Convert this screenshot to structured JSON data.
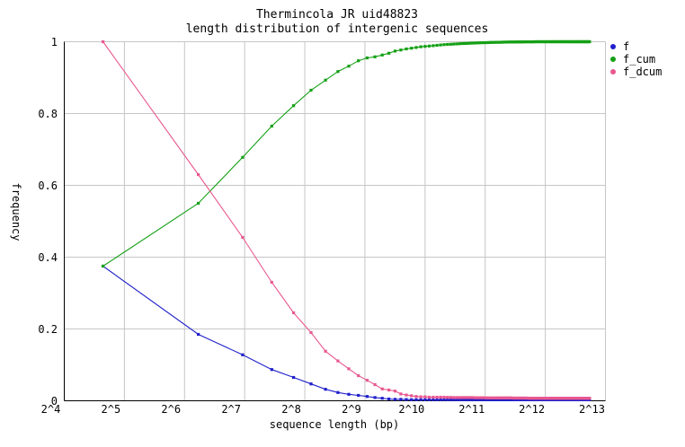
{
  "title": {
    "line1": "Thermincola JR uid48823",
    "line2": "length distribution of intergenic sequences"
  },
  "axes": {
    "x_label": "sequence length (bp)",
    "y_label": "frequency",
    "x_ticks": [
      {
        "label": "2^4",
        "log2": 4
      },
      {
        "label": "2^5",
        "log2": 5
      },
      {
        "label": "2^6",
        "log2": 6
      },
      {
        "label": "2^7",
        "log2": 7
      },
      {
        "label": "2^8",
        "log2": 8
      },
      {
        "label": "2^9",
        "log2": 9
      },
      {
        "label": "2^10",
        "log2": 10
      },
      {
        "label": "2^11",
        "log2": 11
      },
      {
        "label": "2^12",
        "log2": 12
      },
      {
        "label": "2^13",
        "log2": 13
      }
    ],
    "y_ticks": [
      {
        "label": "0",
        "value": 0
      },
      {
        "label": "0.2",
        "value": 0.2
      },
      {
        "label": "0.4",
        "value": 0.4
      },
      {
        "label": "0.6",
        "value": 0.6
      },
      {
        "label": "0.8",
        "value": 0.8
      },
      {
        "label": "1",
        "value": 1
      }
    ],
    "grid_color": "#c6c6c6",
    "axis_color": "#000000"
  },
  "chart_data": {
    "type": "line",
    "title": "Thermincola JR uid48823 — length distribution of intergenic sequences",
    "xlabel": "sequence length (bp)",
    "ylabel": "frequency",
    "x_scale": "log2",
    "xlim_log2": [
      4,
      13
    ],
    "ylim": [
      0,
      1
    ],
    "grid": true,
    "legend_position": "top-right-outside",
    "x_bp": [
      25,
      75,
      125,
      175,
      225,
      275,
      325,
      375,
      425,
      475,
      525,
      575,
      625,
      675,
      725,
      775,
      825,
      875,
      925,
      975,
      1025,
      1075,
      1125,
      1175,
      1225,
      1275,
      1325,
      1375,
      1425,
      1475,
      1525,
      1575,
      1625,
      1675,
      1725,
      1775,
      1825,
      1875,
      1925,
      1975,
      2025,
      2075,
      2125,
      2175,
      2225,
      2275,
      2325,
      2375,
      2425,
      2475,
      2525,
      2575,
      2625,
      2675,
      2725,
      2775,
      2825,
      2875,
      2925,
      2975,
      3025,
      3075,
      3125,
      3175,
      3225,
      3275,
      3325,
      3375,
      3425,
      3475,
      3525,
      3575,
      3625,
      3675,
      3725,
      3775,
      3825,
      3875,
      3925,
      3975,
      4025,
      4075,
      4125,
      4175,
      4225,
      4275,
      4325,
      4375,
      4425,
      4475,
      4525,
      4575,
      4625,
      4675,
      4725,
      4775,
      4825,
      4875,
      4925,
      4975,
      5025,
      5075,
      5125,
      5175,
      5225,
      5275,
      5325,
      5375,
      5425,
      5475,
      5525,
      5575,
      5625,
      5675,
      5725,
      5775,
      5825,
      5875,
      5925,
      5975,
      6025,
      6075,
      6125,
      6175,
      6225,
      6275,
      6325,
      6375,
      6425,
      6475,
      6525,
      6575,
      6625,
      6675,
      6725,
      6775,
      6825
    ],
    "series": [
      {
        "name": "f",
        "color": "#2020cc",
        "values": [
          0.375,
          0.185,
          0.128,
          0.087,
          0.065,
          0.047,
          0.032,
          0.023,
          0.018,
          0.015,
          0.012,
          0.009,
          0.007,
          0.005,
          0.004,
          0.004,
          0.0035,
          0.003,
          0.003,
          0.003,
          0.003,
          0.003,
          0.003,
          0.003,
          0.003,
          0.003,
          0.003,
          0.003,
          0.003,
          0.003,
          0.003,
          0.003,
          0.003,
          0.003,
          0.003,
          0.003,
          0.003,
          0.003,
          0.003,
          0.003,
          0.003,
          0.003,
          0.003,
          0.003,
          0.003,
          0.003,
          0.003,
          0.003,
          0.003,
          0.003,
          0.003,
          0.003,
          0.003,
          0.003,
          0.003,
          0.003,
          0.003,
          0.003,
          0.003,
          0.003,
          0.003,
          0.003,
          0.003,
          0.003,
          0.003,
          0.003,
          0.003,
          0.003,
          0.003,
          0.003,
          0.003,
          0.003,
          0.003,
          0.003,
          0.003,
          0.003,
          0.003,
          0.003,
          0.003,
          0.003,
          0.003,
          0.003,
          0.003,
          0.003,
          0.003,
          0.003,
          0.003,
          0.003,
          0.003,
          0.003,
          0.003,
          0.003,
          0.003,
          0.003,
          0.003,
          0.003,
          0.003,
          0.003,
          0.003,
          0.003,
          0.003,
          0.003,
          0.003,
          0.003,
          0.003,
          0.003,
          0.003,
          0.003,
          0.003,
          0.003,
          0.003,
          0.003,
          0.003,
          0.003,
          0.003,
          0.003,
          0.003,
          0.003,
          0.003,
          0.003,
          0.003,
          0.003,
          0.003,
          0.003,
          0.003,
          0.003,
          0.003,
          0.003,
          0.003,
          0.003,
          0.003,
          0.003,
          0.003,
          0.003,
          0.003,
          0.003,
          0.003
        ]
      },
      {
        "name": "f_cum",
        "color": "#14a014",
        "values": [
          0.375,
          0.55,
          0.678,
          0.765,
          0.822,
          0.865,
          0.893,
          0.917,
          0.932,
          0.947,
          0.955,
          0.958,
          0.963,
          0.968,
          0.974,
          0.977,
          0.98,
          0.982,
          0.984,
          0.986,
          0.987,
          0.988,
          0.989,
          0.99,
          0.991,
          0.992,
          0.9925,
          0.993,
          0.9935,
          0.994,
          0.9945,
          0.995,
          0.9953,
          0.9956,
          0.9959,
          0.9962,
          0.9965,
          0.9968,
          0.997,
          0.9972,
          0.9974,
          0.9976,
          0.9978,
          0.998,
          0.9982,
          0.9983,
          0.9984,
          0.9985,
          0.9986,
          0.9987,
          0.9988,
          0.999,
          0.9991,
          0.9991,
          0.9992,
          0.9992,
          0.9993,
          0.9993,
          0.9994,
          0.9994,
          0.9995,
          0.9995,
          0.9996,
          0.9996,
          0.9997,
          0.9997,
          0.9998,
          0.9998,
          0.9998,
          0.9998,
          0.9998,
          0.9998,
          0.9999,
          0.9999,
          0.9999,
          0.9999,
          0.9999,
          0.9999,
          0.9999,
          0.9999,
          1.0,
          1.0,
          1.0,
          1.0,
          1.0,
          1.0,
          1.0,
          1.0,
          1.0,
          1.0,
          1.0,
          1.0,
          1.0,
          1.0,
          1.0,
          1.0,
          1.0,
          1.0,
          1.0,
          1.0,
          1.0,
          1.0,
          1.0,
          1.0,
          1.0,
          1.0,
          1.0,
          1.0,
          1.0,
          1.0,
          1.0,
          1.0,
          1.0,
          1.0,
          1.0,
          1.0,
          1.0,
          1.0,
          1.0,
          1.0,
          1.0,
          1.0,
          1.0,
          1.0,
          1.0,
          1.0,
          1.0,
          1.0,
          1.0,
          1.0,
          1.0,
          1.0,
          1.0,
          1.0,
          1.0,
          1.0,
          1.0
        ]
      },
      {
        "name": "f_dcum",
        "color": "#e85890",
        "values": [
          1.0,
          0.63,
          0.455,
          0.33,
          0.245,
          0.19,
          0.138,
          0.111,
          0.089,
          0.07,
          0.057,
          0.045,
          0.033,
          0.03,
          0.027,
          0.019,
          0.016,
          0.014,
          0.012,
          0.011,
          0.011,
          0.01,
          0.01,
          0.01,
          0.01,
          0.01,
          0.0095,
          0.0095,
          0.009,
          0.009,
          0.009,
          0.009,
          0.009,
          0.009,
          0.009,
          0.009,
          0.0085,
          0.0085,
          0.0085,
          0.0085,
          0.0085,
          0.008,
          0.008,
          0.008,
          0.008,
          0.008,
          0.008,
          0.008,
          0.008,
          0.008,
          0.008,
          0.008,
          0.008,
          0.008,
          0.008,
          0.008,
          0.0075,
          0.0075,
          0.0075,
          0.0075,
          0.0075,
          0.0075,
          0.0075,
          0.0075,
          0.0075,
          0.0075,
          0.0075,
          0.007,
          0.007,
          0.007,
          0.007,
          0.007,
          0.007,
          0.007,
          0.007,
          0.007,
          0.007,
          0.007,
          0.007,
          0.007,
          0.007,
          0.007,
          0.007,
          0.007,
          0.007,
          0.007,
          0.007,
          0.007,
          0.007,
          0.007,
          0.007,
          0.007,
          0.007,
          0.007,
          0.007,
          0.007,
          0.007,
          0.007,
          0.007,
          0.007,
          0.007,
          0.007,
          0.007,
          0.007,
          0.007,
          0.007,
          0.007,
          0.007,
          0.007,
          0.007,
          0.007,
          0.007,
          0.007,
          0.007,
          0.007,
          0.007,
          0.007,
          0.007,
          0.007,
          0.007,
          0.007,
          0.007,
          0.007,
          0.007,
          0.007,
          0.007,
          0.007,
          0.007,
          0.007,
          0.007,
          0.007,
          0.007,
          0.007,
          0.007,
          0.007,
          0.007,
          0.007
        ]
      }
    ]
  }
}
